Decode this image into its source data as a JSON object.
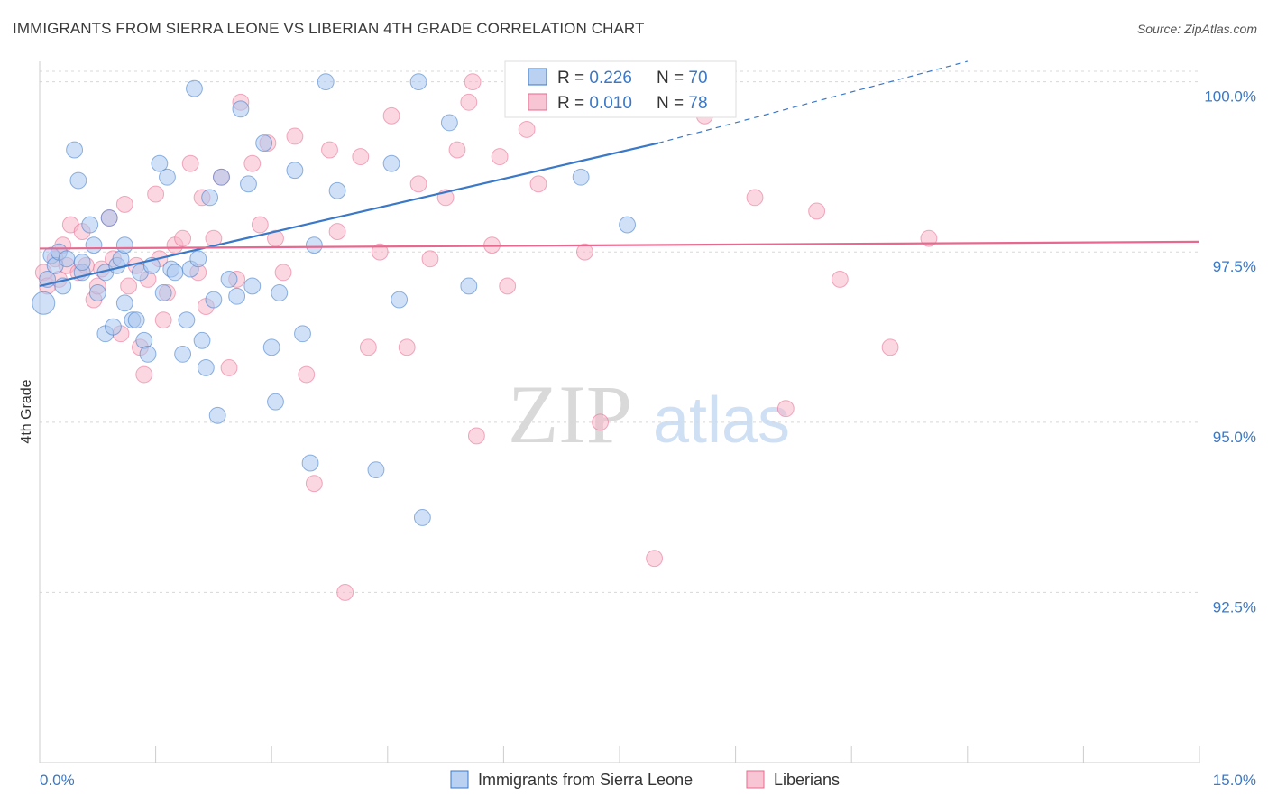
{
  "title": "IMMIGRANTS FROM SIERRA LEONE VS LIBERIAN 4TH GRADE CORRELATION CHART",
  "source": "Source: ZipAtlas.com",
  "watermark": {
    "part1": "ZIP",
    "part2": "atlas"
  },
  "colors": {
    "blue": "#3a78c8",
    "blue_fill": "#a9c6ee",
    "pink": "#e8698f",
    "pink_fill": "#f6b7c9",
    "axis_label": "#3a78c8",
    "grid": "#d8d8d8"
  },
  "legend_stats": [
    {
      "r_label": "R = ",
      "r_value": "0.226",
      "n_label": "N = ",
      "n_value": "70"
    },
    {
      "r_label": "R = ",
      "r_value": "0.010",
      "n_label": "N = ",
      "n_value": "78"
    }
  ],
  "chart_data": {
    "type": "scatter",
    "title": "IMMIGRANTS FROM SIERRA LEONE VS LIBERIAN 4TH GRADE CORRELATION CHART",
    "xlabel": "",
    "ylabel": "4th Grade",
    "xlim": [
      0,
      15
    ],
    "ylim": [
      90.0,
      100.3
    ],
    "x_tick_labels": [
      "0.0%",
      "15.0%"
    ],
    "y_ticks": [
      92.5,
      95.0,
      97.5,
      100.0
    ],
    "y_tick_labels": [
      "92.5%",
      "95.0%",
      "97.5%",
      "100.0%"
    ],
    "grid": true,
    "legend_position": "bottom-center",
    "series": [
      {
        "name": "Immigrants from Sierra Leone",
        "color": "#3a78c8",
        "r": 0.226,
        "n": 70,
        "trend": {
          "x0": 0,
          "y0": 97.0,
          "x1": 8.0,
          "y1": 99.1,
          "dash_to_x": 12.0,
          "dash_to_y": 100.3
        },
        "points": [
          [
            0.05,
            96.75,
            14
          ],
          [
            0.1,
            97.1,
            10
          ],
          [
            0.15,
            97.45,
            10
          ],
          [
            0.2,
            97.3,
            10
          ],
          [
            0.25,
            97.5,
            10
          ],
          [
            0.3,
            97.0,
            10
          ],
          [
            0.35,
            97.4,
            10
          ],
          [
            0.45,
            99.0,
            10
          ],
          [
            0.5,
            98.55,
            10
          ],
          [
            0.55,
            97.2,
            10
          ],
          [
            0.55,
            97.35,
            10
          ],
          [
            0.65,
            97.9,
            10
          ],
          [
            0.7,
            97.6,
            10
          ],
          [
            0.75,
            96.9,
            10
          ],
          [
            0.85,
            96.3,
            10
          ],
          [
            0.85,
            97.2,
            10
          ],
          [
            0.9,
            98.0,
            10
          ],
          [
            0.95,
            96.4,
            10
          ],
          [
            1.0,
            97.3,
            10
          ],
          [
            1.05,
            97.4,
            10
          ],
          [
            1.1,
            96.75,
            10
          ],
          [
            1.1,
            97.6,
            10
          ],
          [
            1.2,
            96.5,
            10
          ],
          [
            1.25,
            96.5,
            10
          ],
          [
            1.3,
            97.2,
            10
          ],
          [
            1.35,
            96.2,
            10
          ],
          [
            1.4,
            96.0,
            10
          ],
          [
            1.45,
            97.3,
            10
          ],
          [
            1.55,
            98.8,
            10
          ],
          [
            1.6,
            96.9,
            10
          ],
          [
            1.65,
            98.6,
            10
          ],
          [
            1.7,
            97.25,
            10
          ],
          [
            1.75,
            97.2,
            10
          ],
          [
            1.85,
            96.0,
            10
          ],
          [
            1.9,
            96.5,
            10
          ],
          [
            1.95,
            97.25,
            10
          ],
          [
            2.0,
            99.9,
            10
          ],
          [
            2.05,
            97.4,
            10
          ],
          [
            2.1,
            96.2,
            10
          ],
          [
            2.15,
            95.8,
            10
          ],
          [
            2.2,
            98.3,
            10
          ],
          [
            2.25,
            96.8,
            10
          ],
          [
            2.3,
            95.1,
            10
          ],
          [
            2.35,
            98.6,
            10
          ],
          [
            2.45,
            97.1,
            10
          ],
          [
            2.55,
            96.85,
            10
          ],
          [
            2.6,
            99.6,
            10
          ],
          [
            2.7,
            98.5,
            10
          ],
          [
            2.75,
            97.0,
            10
          ],
          [
            2.9,
            99.1,
            10
          ],
          [
            3.0,
            96.1,
            10
          ],
          [
            3.05,
            95.3,
            10
          ],
          [
            3.1,
            96.9,
            10
          ],
          [
            3.3,
            98.7,
            10
          ],
          [
            3.4,
            96.3,
            10
          ],
          [
            3.5,
            94.4,
            10
          ],
          [
            3.55,
            97.6,
            10
          ],
          [
            3.7,
            100.0,
            10
          ],
          [
            3.85,
            98.4,
            10
          ],
          [
            4.35,
            94.3,
            10
          ],
          [
            4.55,
            98.8,
            10
          ],
          [
            4.65,
            96.8,
            10
          ],
          [
            4.9,
            100.0,
            10
          ],
          [
            4.95,
            93.6,
            10
          ],
          [
            5.3,
            99.4,
            10
          ],
          [
            5.55,
            97.0,
            10
          ],
          [
            6.2,
            100.0,
            10
          ],
          [
            7.0,
            98.6,
            10
          ],
          [
            7.6,
            97.9,
            10
          ],
          [
            8.05,
            99.8,
            10
          ]
        ]
      },
      {
        "name": "Liberians",
        "color": "#e8698f",
        "r": 0.01,
        "n": 78,
        "trend": {
          "x0": 0,
          "y0": 97.55,
          "x1": 15.0,
          "y1": 97.65
        },
        "points": [
          [
            0.05,
            97.2,
            10
          ],
          [
            0.1,
            97.0,
            10
          ],
          [
            0.2,
            97.4,
            10
          ],
          [
            0.25,
            97.1,
            10
          ],
          [
            0.3,
            97.6,
            10
          ],
          [
            0.35,
            97.3,
            10
          ],
          [
            0.4,
            97.9,
            10
          ],
          [
            0.5,
            97.2,
            10
          ],
          [
            0.55,
            97.8,
            10
          ],
          [
            0.6,
            97.3,
            10
          ],
          [
            0.7,
            96.8,
            10
          ],
          [
            0.75,
            97.0,
            10
          ],
          [
            0.8,
            97.25,
            10
          ],
          [
            0.9,
            98.0,
            10
          ],
          [
            0.95,
            97.4,
            10
          ],
          [
            1.05,
            96.3,
            10
          ],
          [
            1.1,
            98.2,
            10
          ],
          [
            1.15,
            97.0,
            10
          ],
          [
            1.25,
            97.3,
            10
          ],
          [
            1.3,
            96.1,
            10
          ],
          [
            1.35,
            95.7,
            10
          ],
          [
            1.4,
            97.1,
            10
          ],
          [
            1.5,
            98.35,
            10
          ],
          [
            1.55,
            97.4,
            10
          ],
          [
            1.6,
            96.5,
            10
          ],
          [
            1.65,
            96.9,
            10
          ],
          [
            1.75,
            97.6,
            10
          ],
          [
            1.85,
            97.7,
            10
          ],
          [
            1.95,
            98.8,
            10
          ],
          [
            2.05,
            97.2,
            10
          ],
          [
            2.1,
            98.3,
            10
          ],
          [
            2.15,
            96.7,
            10
          ],
          [
            2.25,
            97.7,
            10
          ],
          [
            2.35,
            98.6,
            10
          ],
          [
            2.45,
            95.8,
            10
          ],
          [
            2.55,
            97.1,
            10
          ],
          [
            2.6,
            99.7,
            10
          ],
          [
            2.75,
            98.8,
            10
          ],
          [
            2.85,
            97.9,
            10
          ],
          [
            2.95,
            99.1,
            10
          ],
          [
            3.05,
            97.7,
            10
          ],
          [
            3.15,
            97.2,
            10
          ],
          [
            3.3,
            99.2,
            10
          ],
          [
            3.45,
            95.7,
            10
          ],
          [
            3.55,
            94.1,
            10
          ],
          [
            3.75,
            99.0,
            10
          ],
          [
            3.85,
            97.8,
            10
          ],
          [
            3.95,
            92.5,
            10
          ],
          [
            4.15,
            98.9,
            10
          ],
          [
            4.25,
            96.1,
            10
          ],
          [
            4.4,
            97.5,
            10
          ],
          [
            4.55,
            99.5,
            10
          ],
          [
            4.75,
            96.1,
            10
          ],
          [
            4.9,
            98.5,
            10
          ],
          [
            5.05,
            97.4,
            10
          ],
          [
            5.25,
            98.3,
            10
          ],
          [
            5.4,
            99.0,
            10
          ],
          [
            5.55,
            99.7,
            10
          ],
          [
            5.6,
            100.0,
            10
          ],
          [
            5.65,
            94.8,
            10
          ],
          [
            5.85,
            97.6,
            10
          ],
          [
            5.95,
            98.9,
            10
          ],
          [
            6.05,
            97.0,
            10
          ],
          [
            6.3,
            99.3,
            10
          ],
          [
            6.45,
            98.5,
            10
          ],
          [
            6.75,
            99.7,
            10
          ],
          [
            7.05,
            97.5,
            10
          ],
          [
            7.25,
            95.0,
            10
          ],
          [
            7.55,
            99.6,
            10
          ],
          [
            7.95,
            93.0,
            10
          ],
          [
            8.4,
            99.7,
            10
          ],
          [
            8.6,
            99.5,
            10
          ],
          [
            9.25,
            98.3,
            10
          ],
          [
            9.65,
            95.2,
            10
          ],
          [
            10.05,
            98.1,
            10
          ],
          [
            10.35,
            97.1,
            10
          ],
          [
            11.0,
            96.1,
            10
          ],
          [
            11.5,
            97.7,
            10
          ]
        ]
      }
    ]
  }
}
